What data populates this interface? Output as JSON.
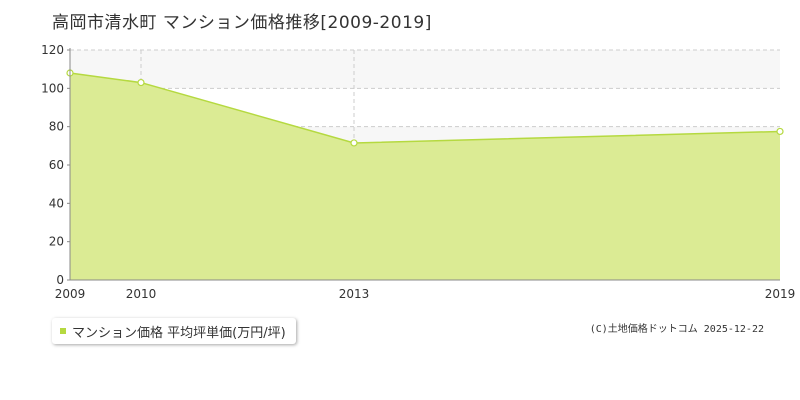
{
  "title": "高岡市清水町 マンション価格推移[2009-2019]",
  "legend": {
    "label": "マンション価格 平均坪単価(万円/坪)"
  },
  "credit": "(C)土地価格ドットコム 2025-12-22",
  "colors": {
    "fill": "#dbeb94",
    "line": "#b5d940",
    "marker_fill": "#ffffff",
    "band": "#f7f7f7",
    "grid": "#cccccc"
  },
  "chart_data": {
    "type": "area",
    "x": [
      2009,
      2010,
      2013,
      2019
    ],
    "series": [
      {
        "name": "マンション価格 平均坪単価(万円/坪)",
        "values": [
          108,
          103,
          71.5,
          77.5
        ]
      }
    ],
    "xlabel": "",
    "ylabel": "",
    "ylim": [
      0,
      120
    ],
    "yticks": [
      0,
      20,
      40,
      60,
      80,
      100,
      120
    ],
    "xticks": [
      "2009",
      "2010",
      "2013",
      "2019"
    ],
    "grid": true
  }
}
